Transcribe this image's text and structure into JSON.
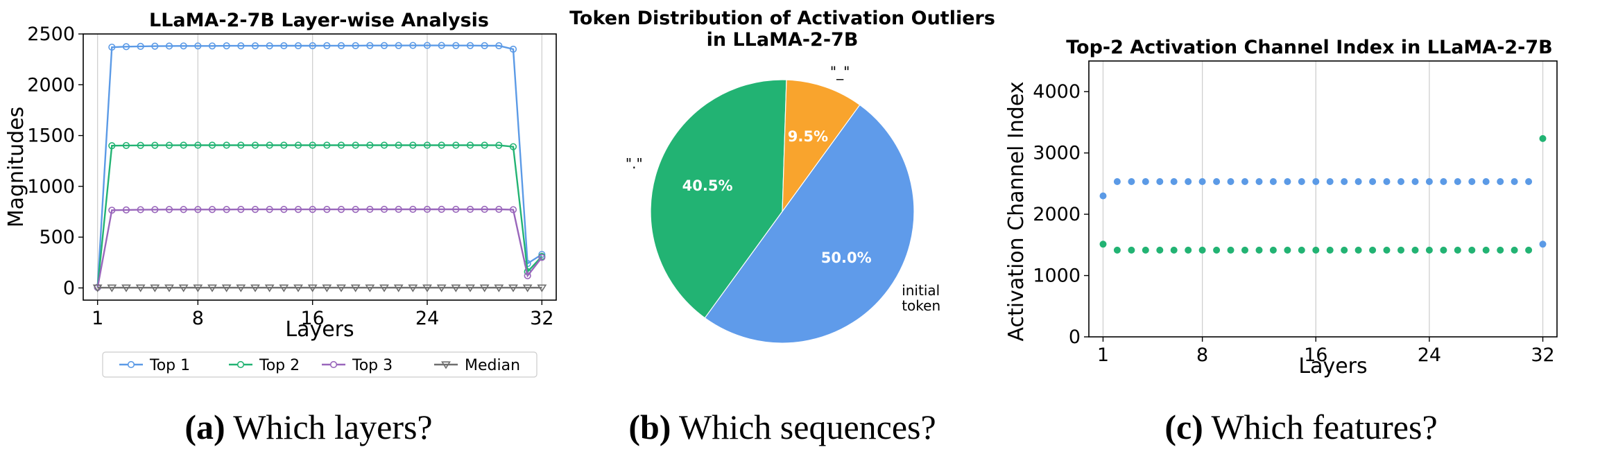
{
  "colors": {
    "top1": "#5b9ae6",
    "top2": "#22b373",
    "top3": "#9966bb",
    "median": "#6e6e6e",
    "pie_initial": "#5f9bea",
    "pie_period": "#22b373",
    "pie_underscore": "#f9a42d"
  },
  "captions": [
    {
      "letter": "(a)",
      "text": " Which layers?"
    },
    {
      "letter": "(b)",
      "text": " Which sequences?"
    },
    {
      "letter": "(c)",
      "text": " Which features?"
    }
  ],
  "chart_data": [
    {
      "type": "line",
      "title": "LLaMA-2-7B Layer-wise Analysis",
      "xlabel": "Layers",
      "ylabel": "Magnitudes",
      "xlim": [
        0,
        33
      ],
      "ylim": [
        -120,
        2500
      ],
      "xticks": [
        1,
        8,
        16,
        24,
        32
      ],
      "yticks": [
        0,
        500,
        1000,
        1500,
        2000,
        2500
      ],
      "grid": "vertical",
      "legend": "bottom",
      "x": [
        1,
        2,
        3,
        4,
        5,
        6,
        7,
        8,
        9,
        10,
        11,
        12,
        13,
        14,
        15,
        16,
        17,
        18,
        19,
        20,
        21,
        22,
        23,
        24,
        25,
        26,
        27,
        28,
        29,
        30,
        31,
        32
      ],
      "series": [
        {
          "name": "Top 1",
          "marker": "circle",
          "values": [
            5,
            2370,
            2375,
            2378,
            2380,
            2381,
            2382,
            2382,
            2382,
            2383,
            2383,
            2383,
            2383,
            2384,
            2384,
            2384,
            2385,
            2385,
            2385,
            2386,
            2386,
            2386,
            2387,
            2387,
            2387,
            2386,
            2386,
            2385,
            2384,
            2350,
            240,
            330
          ]
        },
        {
          "name": "Top 2",
          "marker": "circle",
          "values": [
            5,
            1400,
            1402,
            1403,
            1404,
            1404,
            1405,
            1405,
            1405,
            1405,
            1405,
            1405,
            1405,
            1405,
            1405,
            1405,
            1405,
            1405,
            1405,
            1405,
            1405,
            1405,
            1405,
            1405,
            1405,
            1405,
            1405,
            1405,
            1404,
            1390,
            160,
            310
          ]
        },
        {
          "name": "Top 3",
          "marker": "circle",
          "values": [
            5,
            765,
            768,
            770,
            771,
            772,
            772,
            772,
            772,
            772,
            773,
            773,
            773,
            773,
            773,
            773,
            773,
            773,
            773,
            774,
            774,
            774,
            774,
            774,
            774,
            774,
            774,
            774,
            774,
            770,
            120,
            300
          ]
        },
        {
          "name": "Median",
          "marker": "triangle-down",
          "values": [
            2,
            2,
            2,
            2,
            2,
            2,
            2,
            2,
            2,
            2,
            2,
            2,
            2,
            2,
            2,
            2,
            2,
            2,
            2,
            2,
            2,
            2,
            2,
            2,
            2,
            2,
            2,
            2,
            2,
            2,
            2,
            2
          ]
        }
      ]
    },
    {
      "type": "pie",
      "title": "Token Distribution of Activation Outliers",
      "title_line2": "in LLaMA-2-7B",
      "labels": [
        "initial",
        "\".\"",
        "\"_\""
      ],
      "label_lines": [
        [
          "initial",
          "token"
        ],
        [
          "\".\""
        ],
        [
          "\"_\""
        ]
      ],
      "values": [
        50.0,
        40.5,
        9.5
      ],
      "pct_labels": [
        "50.0%",
        "40.5%",
        "9.5%"
      ]
    },
    {
      "type": "scatter",
      "title": "Top-2 Activation Channel Index in LLaMA-2-7B",
      "xlabel": "Layers",
      "ylabel": "Activation Channel Index",
      "xlim": [
        0,
        33
      ],
      "ylim": [
        0,
        4500
      ],
      "xticks": [
        1,
        8,
        16,
        24,
        32
      ],
      "yticks": [
        0,
        1000,
        2000,
        3000,
        4000
      ],
      "grid": "vertical",
      "x": [
        1,
        2,
        3,
        4,
        5,
        6,
        7,
        8,
        9,
        10,
        11,
        12,
        13,
        14,
        15,
        16,
        17,
        18,
        19,
        20,
        21,
        22,
        23,
        24,
        25,
        26,
        27,
        28,
        29,
        30,
        31,
        32
      ],
      "series": [
        {
          "name": "",
          "color_key": "top1",
          "values": [
            2300,
            2533,
            2533,
            2533,
            2533,
            2533,
            2533,
            2533,
            2533,
            2533,
            2533,
            2533,
            2533,
            2533,
            2533,
            2533,
            2533,
            2533,
            2533,
            2533,
            2533,
            2533,
            2533,
            2533,
            2533,
            2533,
            2533,
            2533,
            2533,
            2533,
            2533,
            1512
          ]
        },
        {
          "name": "",
          "color_key": "top2",
          "values": [
            1512,
            1415,
            1415,
            1415,
            1415,
            1415,
            1415,
            1415,
            1415,
            1415,
            1415,
            1415,
            1415,
            1415,
            1415,
            1415,
            1415,
            1415,
            1415,
            1415,
            1415,
            1415,
            1415,
            1415,
            1415,
            1415,
            1415,
            1415,
            1415,
            1415,
            1415,
            3235
          ]
        }
      ]
    }
  ]
}
